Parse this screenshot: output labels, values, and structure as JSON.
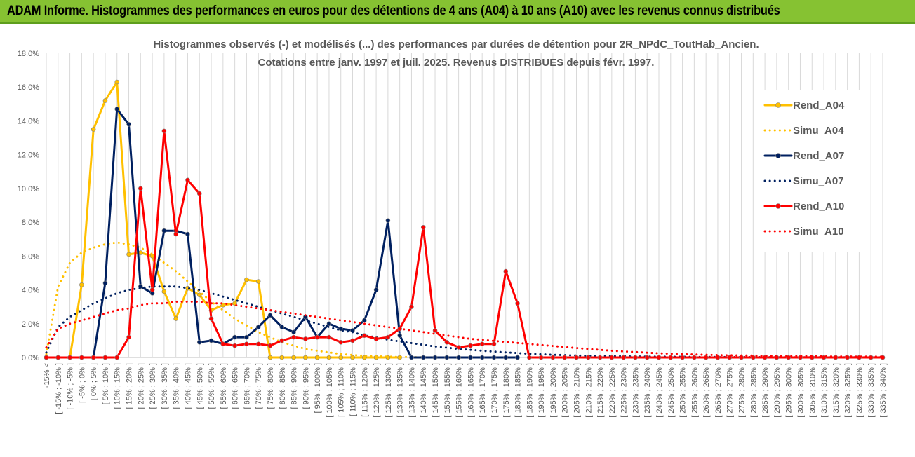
{
  "header": {
    "title": "ADAM Informe. Histogrammes des performances en euros pour des détentions de 4 ans (A04) à 10 ans (A10) avec les revenus connus distribués"
  },
  "chart_data": {
    "type": "line",
    "title": "Histogrammes observés (-) et modélisés (...) des performances par durées de détention pour 2R_NPdC_ToutHab_Ancien.",
    "subtitle": "Cotations entre janv. 1997 et juil. 2025. Revenus DISTRIBUES depuis févr. 1997.",
    "xlabel": "",
    "ylabel": "",
    "ylim": [
      0,
      18
    ],
    "yticks": [
      "0,0%",
      "2,0%",
      "4,0%",
      "6,0%",
      "8,0%",
      "10,0%",
      "12,0%",
      "14,0%",
      "16,0%",
      "18,0%"
    ],
    "grid": "vertical",
    "legend": "right",
    "categories": [
      "-15% <",
      "[ -15% ; -10% ]",
      "[ -10% ; -5% ]",
      "[ -5% ; 0% ]",
      "[ 0% ; 5% ]",
      "[ 5% ; 10% ]",
      "[ 10% ; 15% ]",
      "[ 15% ; 20% ]",
      "[ 20% ; 25% ]",
      "[ 25% ; 30% ]",
      "[ 30% ; 35% ]",
      "[ 35% ; 40% ]",
      "[ 40% ; 45% ]",
      "[ 45% ; 50% ]",
      "[ 50% ; 55% ]",
      "[ 55% ; 60% ]",
      "[ 60% ; 65% ]",
      "[ 65% ; 70% ]",
      "[ 70% ; 75% ]",
      "[ 75% ; 80% ]",
      "[ 80% ; 85% ]",
      "[ 85% ; 90% ]",
      "[ 90% ; 95% ]",
      "[ 95% ; 100% ]",
      "[ 100% ; 105% ]",
      "[ 105% ; 110% ]",
      "[ 110% ; 115% ]",
      "[ 115% ; 120% ]",
      "[ 120% ; 125% ]",
      "[ 125% ; 130% ]",
      "[ 130% ; 135% ]",
      "[ 135% ; 140% ]",
      "[ 140% ; 145% ]",
      "[ 145% ; 150% ]",
      "[ 150% ; 155% ]",
      "[ 155% ; 160% ]",
      "[ 160% ; 165% ]",
      "[ 165% ; 170% ]",
      "[ 170% ; 175% ]",
      "[ 175% ; 180% ]",
      "[ 180% ; 185% ]",
      "[ 185% ; 190% ]",
      "[ 190% ; 195% ]",
      "[ 195% ; 200% ]",
      "[ 200% ; 205% ]",
      "[ 205% ; 210% ]",
      "[ 210% ; 215% ]",
      "[ 215% ; 220% ]",
      "[ 220% ; 225% ]",
      "[ 225% ; 230% ]",
      "[ 230% ; 235% ]",
      "[ 235% ; 240% ]",
      "[ 240% ; 245% ]",
      "[ 245% ; 250% ]",
      "[ 250% ; 255% ]",
      "[ 255% ; 260% ]",
      "[ 260% ; 265% ]",
      "[ 265% ; 270% ]",
      "[ 270% ; 275% ]",
      "[ 275% ; 280% ]",
      "[ 280% ; 285% ]",
      "[ 285% ; 290% ]",
      "[ 290% ; 295% ]",
      "[ 295% ; 300% ]",
      "[ 300% ; 305% ]",
      "[ 305% ; 310% ]",
      "[ 310% ; 315% ]",
      "[ 315% ; 320% ]",
      "[ 320% ; 325% ]",
      "[ 325% ; 330% ]",
      "[ 330% ; 335% ]",
      "[ 335% ; 340% ]"
    ],
    "series": [
      {
        "name": "Rend_A04",
        "style": "solid",
        "color": "#ffc000",
        "marker": true,
        "values": [
          0,
          0,
          0,
          4.3,
          13.5,
          15.2,
          16.3,
          6.1,
          6.2,
          6,
          3.9,
          2.3,
          4.1,
          3.7,
          2.8,
          3.1,
          3.2,
          4.6,
          4.5,
          0,
          0,
          0,
          0,
          0,
          0,
          0,
          0,
          0,
          0,
          0,
          0,
          null,
          null,
          null,
          null,
          null,
          null,
          null,
          null,
          null,
          null,
          null,
          null,
          null,
          null,
          null,
          null,
          null,
          null,
          null,
          null,
          null,
          null,
          null,
          null,
          null,
          null,
          null,
          null,
          null,
          null,
          null,
          null,
          null,
          null,
          null,
          null,
          null,
          null,
          null,
          null,
          null
        ]
      },
      {
        "name": "Simu_A04",
        "style": "dotted",
        "color": "#ffc000",
        "marker": false,
        "values": [
          0.2,
          4.2,
          5.6,
          6.2,
          6.5,
          6.7,
          6.8,
          6.7,
          6.5,
          6.1,
          5.6,
          5.1,
          4.5,
          3.9,
          3.3,
          2.8,
          2.3,
          1.9,
          1.5,
          1.2,
          0.9,
          0.7,
          0.5,
          0.4,
          0.3,
          0.2,
          0.15,
          0.1,
          0.07,
          0.05,
          0.03,
          0.02,
          0.01,
          0,
          0,
          null,
          null,
          null,
          null,
          null,
          null,
          null,
          null,
          null,
          null,
          null,
          null,
          null,
          null,
          null,
          null,
          null,
          null,
          null,
          null,
          null,
          null,
          null,
          null,
          null,
          null,
          null,
          null,
          null,
          null,
          null,
          null,
          null,
          null,
          null,
          null,
          null
        ]
      },
      {
        "name": "Rend_A07",
        "style": "solid",
        "color": "#002060",
        "marker": true,
        "values": [
          null,
          null,
          null,
          null,
          0,
          4.4,
          14.7,
          13.8,
          4.2,
          3.8,
          7.5,
          7.5,
          7.3,
          0.9,
          1,
          0.8,
          1.2,
          1.2,
          1.8,
          2.5,
          1.8,
          1.5,
          2.4,
          1.2,
          2,
          1.7,
          1.6,
          2.2,
          4,
          8.1,
          1.3,
          0,
          0,
          0,
          0,
          0,
          0,
          0,
          0,
          0,
          0,
          null,
          null,
          null,
          null,
          null,
          null,
          null,
          null,
          null,
          null,
          null,
          null,
          null,
          null,
          null,
          null,
          null,
          null,
          null,
          null,
          null,
          null,
          null,
          null,
          null,
          null,
          null,
          null,
          null,
          null,
          null
        ]
      },
      {
        "name": "Simu_A07",
        "style": "dotted",
        "color": "#002060",
        "marker": false,
        "values": [
          0.3,
          1.8,
          2.4,
          2.8,
          3.2,
          3.5,
          3.8,
          4,
          4.1,
          4.2,
          4.2,
          4.2,
          4.1,
          4,
          3.8,
          3.6,
          3.4,
          3.2,
          3,
          2.8,
          2.6,
          2.4,
          2.2,
          2,
          1.8,
          1.6,
          1.5,
          1.3,
          1.2,
          1.05,
          0.95,
          0.85,
          0.75,
          0.65,
          0.58,
          0.5,
          0.45,
          0.4,
          0.35,
          0.3,
          0.26,
          0.22,
          0.19,
          0.16,
          0.14,
          0.12,
          0.1,
          0.09,
          0.08,
          0.07,
          0.06,
          0.05,
          0.05,
          0.04,
          0.04,
          0.03,
          0.03,
          0.03,
          0.02,
          0.02,
          0.02,
          0.02,
          0.01,
          0.01,
          0.01,
          0.01,
          0.01,
          0.01,
          0.01,
          0.01,
          0.01,
          0.01
        ]
      },
      {
        "name": "Rend_A10",
        "style": "solid",
        "color": "#ff0000",
        "marker": true,
        "values": [
          0,
          0,
          0,
          0,
          0,
          0,
          0,
          1.2,
          10,
          4,
          13.4,
          7.3,
          10.5,
          9.7,
          2.3,
          0.8,
          0.7,
          0.8,
          0.8,
          0.7,
          1,
          1.2,
          1.1,
          1.2,
          1.2,
          0.9,
          1,
          1.3,
          1.1,
          1.2,
          1.7,
          3,
          7.7,
          1.6,
          0.9,
          0.6,
          0.7,
          0.8,
          0.8,
          5.1,
          3.2,
          0,
          0,
          0,
          0,
          0,
          0,
          0,
          0,
          0,
          0,
          0,
          0,
          0,
          0,
          0,
          0,
          0,
          0,
          0,
          0,
          0,
          0,
          0,
          0,
          0,
          0,
          0,
          0,
          0,
          0,
          0
        ]
      },
      {
        "name": "Simu_A10",
        "style": "dotted",
        "color": "#ff0000",
        "marker": false,
        "values": [
          0.6,
          1.7,
          2,
          2.2,
          2.4,
          2.6,
          2.8,
          2.9,
          3.1,
          3.2,
          3.2,
          3.3,
          3.3,
          3.3,
          3.2,
          3.2,
          3.1,
          3,
          2.9,
          2.8,
          2.7,
          2.6,
          2.5,
          2.4,
          2.3,
          2.2,
          2.1,
          2,
          1.9,
          1.8,
          1.7,
          1.6,
          1.5,
          1.4,
          1.3,
          1.2,
          1.1,
          1.05,
          0.98,
          0.92,
          0.86,
          0.8,
          0.74,
          0.68,
          0.62,
          0.56,
          0.5,
          0.45,
          0.4,
          0.36,
          0.32,
          0.28,
          0.25,
          0.22,
          0.2,
          0.18,
          0.16,
          0.14,
          0.13,
          0.12,
          0.11,
          0.1,
          0.09,
          0.08,
          0.08,
          0.07,
          0.07,
          0.06,
          0.06,
          0.05,
          0.05,
          0.05
        ]
      }
    ]
  }
}
